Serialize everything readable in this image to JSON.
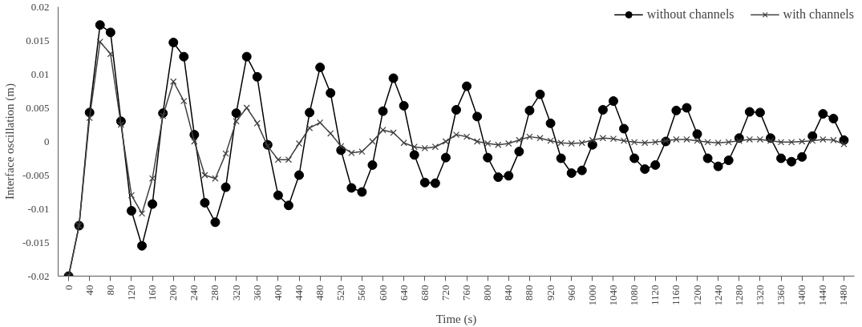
{
  "chart_data": {
    "type": "line",
    "xlabel": "Time (s)",
    "ylabel": "Interface oscillation (m)",
    "x": [
      0,
      20,
      40,
      60,
      80,
      100,
      120,
      140,
      160,
      180,
      200,
      220,
      240,
      260,
      280,
      300,
      320,
      340,
      360,
      380,
      400,
      420,
      440,
      460,
      480,
      500,
      520,
      540,
      560,
      580,
      600,
      620,
      640,
      660,
      680,
      700,
      720,
      740,
      760,
      780,
      800,
      820,
      840,
      860,
      880,
      900,
      920,
      940,
      960,
      980,
      1000,
      1020,
      1040,
      1060,
      1080,
      1100,
      1120,
      1140,
      1160,
      1180,
      1200,
      1220,
      1240,
      1260,
      1280,
      1300,
      1320,
      1340,
      1360,
      1380,
      1400,
      1420,
      1440,
      1460,
      1480
    ],
    "series": [
      {
        "name": "without channels",
        "color": "#000000",
        "marker": "circle",
        "values": [
          -0.02,
          -0.0125,
          0.0043,
          0.0173,
          0.0162,
          0.003,
          -0.0103,
          -0.0155,
          -0.0093,
          0.0042,
          0.0147,
          0.0126,
          0.001,
          -0.0091,
          -0.012,
          -0.0068,
          0.0042,
          0.0126,
          0.0096,
          -0.0005,
          -0.008,
          -0.0095,
          -0.005,
          0.0043,
          0.011,
          0.0072,
          -0.0013,
          -0.0069,
          -0.0075,
          -0.0035,
          0.0045,
          0.0094,
          0.0053,
          -0.002,
          -0.0061,
          -0.0062,
          -0.0024,
          0.0047,
          0.0082,
          0.0037,
          -0.0024,
          -0.0053,
          -0.0051,
          -0.0015,
          0.0046,
          0.007,
          0.0027,
          -0.0025,
          -0.0047,
          -0.0043,
          -0.0005,
          0.0047,
          0.006,
          0.0019,
          -0.0025,
          -0.0041,
          -0.0035,
          0.0,
          0.0046,
          0.005,
          0.0011,
          -0.0025,
          -0.0037,
          -0.0028,
          0.0005,
          0.0044,
          0.0043,
          0.0005,
          -0.0025,
          -0.003,
          -0.0023,
          0.0008,
          0.0041,
          0.0034,
          0.0002
        ]
      },
      {
        "name": "with channels",
        "color": "#404040",
        "marker": "cross",
        "values": [
          -0.02,
          -0.0125,
          0.0035,
          0.0148,
          0.013,
          0.0025,
          -0.008,
          -0.0107,
          -0.0055,
          0.0038,
          0.0089,
          0.006,
          0.0,
          -0.005,
          -0.0055,
          -0.0018,
          0.003,
          0.005,
          0.0027,
          -0.0007,
          -0.0027,
          -0.0027,
          -0.0003,
          0.002,
          0.0028,
          0.0012,
          -0.0007,
          -0.0017,
          -0.0015,
          0.0,
          0.0017,
          0.0013,
          -0.0002,
          -0.0008,
          -0.001,
          -0.0008,
          0.0,
          0.001,
          0.0007,
          0.0,
          -0.0003,
          -0.0005,
          -0.0003,
          0.0002,
          0.0007,
          0.0005,
          0.0001,
          -0.0002,
          -0.0003,
          -0.0002,
          0.0002,
          0.0005,
          0.0004,
          0.0001,
          -0.0001,
          -0.0002,
          -0.0001,
          0.0001,
          0.0003,
          0.0003,
          0.0001,
          -0.0001,
          -0.0002,
          -0.0001,
          0.0001,
          0.0003,
          0.0003,
          0.0001,
          -0.0001,
          -0.0001,
          0.0,
          0.0001,
          0.0003,
          0.0002,
          -0.0004
        ]
      }
    ],
    "xlim": [
      -20,
      1500
    ],
    "ylim": [
      -0.02,
      0.02
    ],
    "xticks": [
      0,
      40,
      80,
      120,
      160,
      200,
      240,
      280,
      320,
      360,
      400,
      440,
      480,
      520,
      560,
      600,
      640,
      680,
      720,
      760,
      800,
      840,
      880,
      920,
      960,
      1000,
      1040,
      1080,
      1120,
      1160,
      1200,
      1240,
      1280,
      1320,
      1360,
      1400,
      1440,
      1480
    ],
    "yticks": [
      -0.02,
      -0.015,
      -0.01,
      -0.005,
      0,
      0.005,
      0.01,
      0.015,
      0.02
    ],
    "grid": false,
    "legend": "top right",
    "line_style": "solid"
  }
}
